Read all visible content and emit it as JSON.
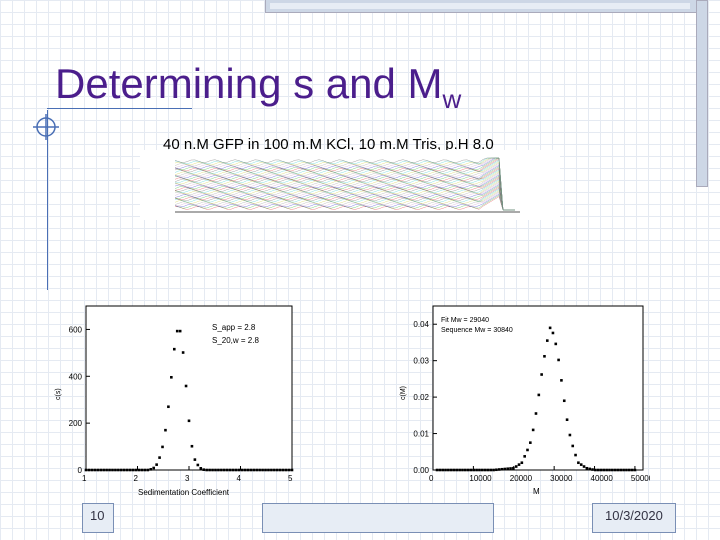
{
  "slide": {
    "title_main": "Determining s and M",
    "title_sub": "w",
    "subtitle": "40 n.M GFP in 100 m.M KCl, 10 m.M Tris, p.H 8.0",
    "slide_number": "10",
    "date": "10/3/2020"
  },
  "chart_data": [
    {
      "type": "line",
      "ylim": [
        0,
        700
      ],
      "xlim": [
        1,
        5
      ],
      "xlabel": "Sedimentation Coefficient",
      "ylabel": "c(s)",
      "xticks": [
        "1",
        "2",
        "3",
        "4",
        "5"
      ],
      "yticks": [
        "0",
        "200",
        "400",
        "600"
      ],
      "annotations": [
        "S_app = 2.8",
        "S_20,w = 2.8"
      ],
      "x": [
        2.2,
        2.3,
        2.4,
        2.5,
        2.55,
        2.6,
        2.65,
        2.7,
        2.75,
        2.8,
        2.85,
        2.9,
        2.95,
        3.0,
        3.05,
        3.1,
        3.2,
        3.3
      ],
      "values": [
        0,
        5,
        30,
        110,
        180,
        270,
        380,
        490,
        580,
        610,
        580,
        470,
        340,
        210,
        110,
        50,
        10,
        0
      ]
    },
    {
      "type": "line",
      "ylim": [
        0,
        0.045
      ],
      "xlim": [
        0,
        52000
      ],
      "xlabel": "M",
      "ylabel": "c(M)",
      "xticks": [
        "0",
        "10000",
        "20000",
        "30000",
        "40000",
        "50000"
      ],
      "yticks": [
        "0.00",
        "0.01",
        "0.02",
        "0.03",
        "0.04"
      ],
      "annotations": [
        "Fit Mw = 29040",
        "Sequence Mw = 30840"
      ],
      "x": [
        0,
        5000,
        10000,
        15000,
        20000,
        22000,
        24000,
        25000,
        26000,
        27000,
        28000,
        29000,
        30000,
        31000,
        32000,
        33000,
        34000,
        35000,
        36000,
        38000,
        40000,
        45000,
        50000
      ],
      "values": [
        0,
        0,
        0,
        0,
        0.0005,
        0.002,
        0.007,
        0.012,
        0.019,
        0.027,
        0.034,
        0.039,
        0.037,
        0.031,
        0.023,
        0.015,
        0.009,
        0.005,
        0.002,
        0.0005,
        0,
        0,
        0
      ]
    }
  ]
}
